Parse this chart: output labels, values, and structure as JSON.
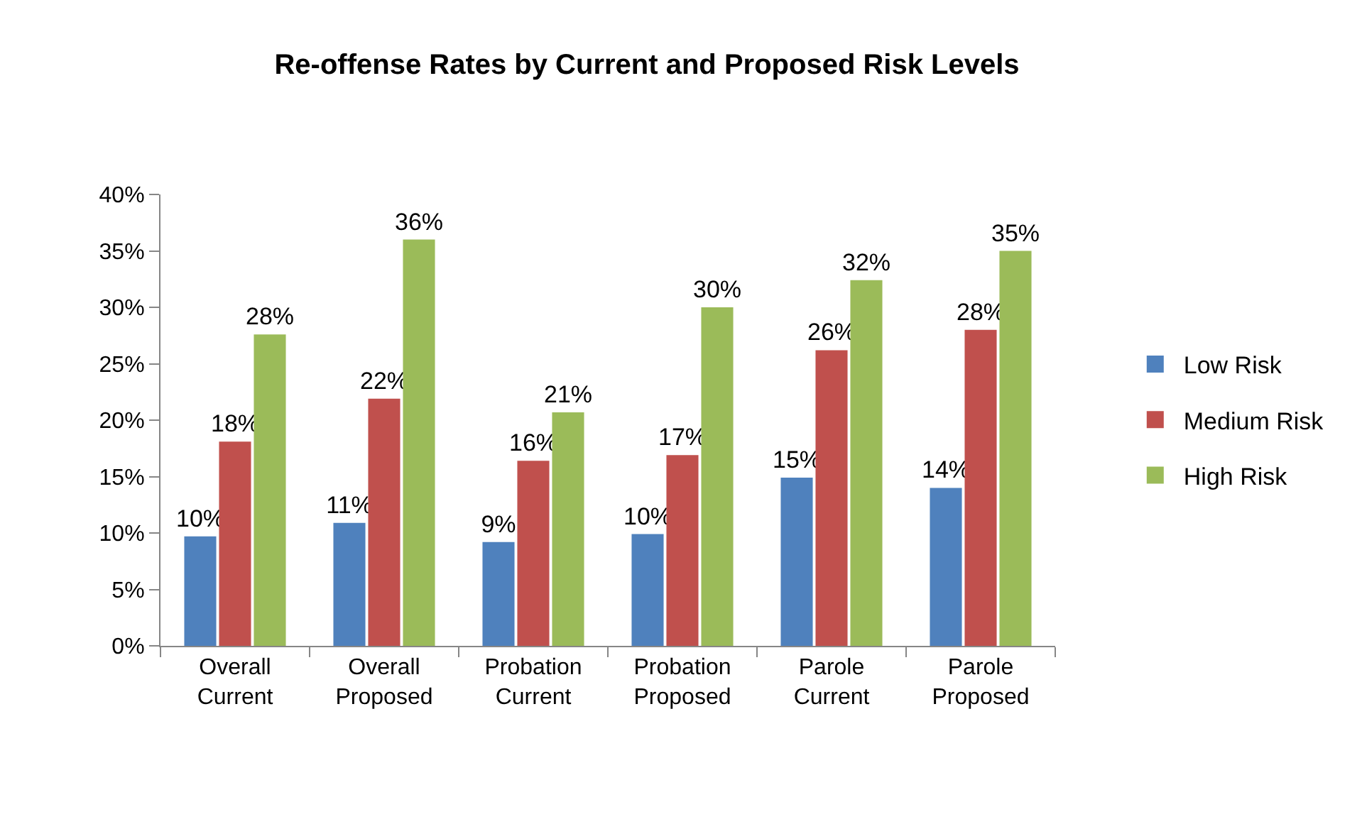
{
  "chart_data": {
    "type": "bar",
    "title": "Re-offense Rates by Current and Proposed Risk Levels",
    "categories": [
      "Overall Current",
      "Overall Proposed",
      "Probation Current",
      "Probation Proposed",
      "Parole Current",
      "Parole Proposed"
    ],
    "series": [
      {
        "name": "Low Risk",
        "color": "#4f81bd",
        "values": [
          9.7,
          10.9,
          9.2,
          9.9,
          14.9,
          14.0
        ],
        "value_labels": [
          "10%",
          "11%",
          "9%",
          "10%",
          "15%",
          "14%"
        ]
      },
      {
        "name": "Medium Risk",
        "color": "#c0504d",
        "values": [
          18.1,
          21.9,
          16.4,
          16.9,
          26.2,
          28.0
        ],
        "value_labels": [
          "18%",
          "22%",
          "16%",
          "17%",
          "26%",
          "28%"
        ]
      },
      {
        "name": "High Risk",
        "color": "#9bbb59",
        "values": [
          27.6,
          36.0,
          20.7,
          30.0,
          32.4,
          35.0
        ],
        "value_labels": [
          "28%",
          "36%",
          "21%",
          "30%",
          "32%",
          "35%"
        ]
      }
    ],
    "ylim": [
      0,
      40
    ],
    "yticks": [
      {
        "value": 0,
        "label": "0%"
      },
      {
        "value": 5,
        "label": "5%"
      },
      {
        "value": 10,
        "label": "10%"
      },
      {
        "value": 15,
        "label": "15%"
      },
      {
        "value": 20,
        "label": "20%"
      },
      {
        "value": 25,
        "label": "25%"
      },
      {
        "value": 30,
        "label": "30%"
      },
      {
        "value": 35,
        "label": "35%"
      },
      {
        "value": 40,
        "label": "40%"
      }
    ],
    "legend": "right",
    "grid": false
  }
}
